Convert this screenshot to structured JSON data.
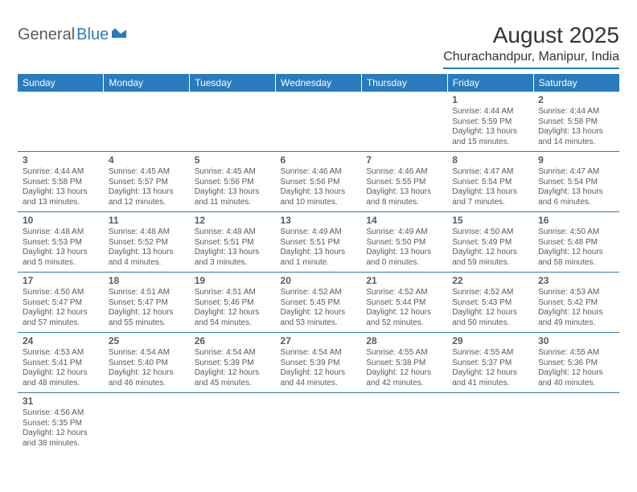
{
  "logo": {
    "part1": "General",
    "part2": "Blue"
  },
  "title": "August 2025",
  "location": "Churachandpur, Manipur, India",
  "colors": {
    "header_bg": "#2a7bbd",
    "header_fg": "#ffffff",
    "rule": "#2a7bbd",
    "text": "#5a5a5a"
  },
  "dayHeaders": [
    "Sunday",
    "Monday",
    "Tuesday",
    "Wednesday",
    "Thursday",
    "Friday",
    "Saturday"
  ],
  "weeks": [
    [
      null,
      null,
      null,
      null,
      null,
      {
        "n": "1",
        "sr": "Sunrise: 4:44 AM",
        "ss": "Sunset: 5:59 PM",
        "dl": "Daylight: 13 hours and 15 minutes."
      },
      {
        "n": "2",
        "sr": "Sunrise: 4:44 AM",
        "ss": "Sunset: 5:58 PM",
        "dl": "Daylight: 13 hours and 14 minutes."
      }
    ],
    [
      {
        "n": "3",
        "sr": "Sunrise: 4:44 AM",
        "ss": "Sunset: 5:58 PM",
        "dl": "Daylight: 13 hours and 13 minutes."
      },
      {
        "n": "4",
        "sr": "Sunrise: 4:45 AM",
        "ss": "Sunset: 5:57 PM",
        "dl": "Daylight: 13 hours and 12 minutes."
      },
      {
        "n": "5",
        "sr": "Sunrise: 4:45 AM",
        "ss": "Sunset: 5:56 PM",
        "dl": "Daylight: 13 hours and 11 minutes."
      },
      {
        "n": "6",
        "sr": "Sunrise: 4:46 AM",
        "ss": "Sunset: 5:56 PM",
        "dl": "Daylight: 13 hours and 10 minutes."
      },
      {
        "n": "7",
        "sr": "Sunrise: 4:46 AM",
        "ss": "Sunset: 5:55 PM",
        "dl": "Daylight: 13 hours and 8 minutes."
      },
      {
        "n": "8",
        "sr": "Sunrise: 4:47 AM",
        "ss": "Sunset: 5:54 PM",
        "dl": "Daylight: 13 hours and 7 minutes."
      },
      {
        "n": "9",
        "sr": "Sunrise: 4:47 AM",
        "ss": "Sunset: 5:54 PM",
        "dl": "Daylight: 13 hours and 6 minutes."
      }
    ],
    [
      {
        "n": "10",
        "sr": "Sunrise: 4:48 AM",
        "ss": "Sunset: 5:53 PM",
        "dl": "Daylight: 13 hours and 5 minutes."
      },
      {
        "n": "11",
        "sr": "Sunrise: 4:48 AM",
        "ss": "Sunset: 5:52 PM",
        "dl": "Daylight: 13 hours and 4 minutes."
      },
      {
        "n": "12",
        "sr": "Sunrise: 4:48 AM",
        "ss": "Sunset: 5:51 PM",
        "dl": "Daylight: 13 hours and 3 minutes."
      },
      {
        "n": "13",
        "sr": "Sunrise: 4:49 AM",
        "ss": "Sunset: 5:51 PM",
        "dl": "Daylight: 13 hours and 1 minute."
      },
      {
        "n": "14",
        "sr": "Sunrise: 4:49 AM",
        "ss": "Sunset: 5:50 PM",
        "dl": "Daylight: 13 hours and 0 minutes."
      },
      {
        "n": "15",
        "sr": "Sunrise: 4:50 AM",
        "ss": "Sunset: 5:49 PM",
        "dl": "Daylight: 12 hours and 59 minutes."
      },
      {
        "n": "16",
        "sr": "Sunrise: 4:50 AM",
        "ss": "Sunset: 5:48 PM",
        "dl": "Daylight: 12 hours and 58 minutes."
      }
    ],
    [
      {
        "n": "17",
        "sr": "Sunrise: 4:50 AM",
        "ss": "Sunset: 5:47 PM",
        "dl": "Daylight: 12 hours and 57 minutes."
      },
      {
        "n": "18",
        "sr": "Sunrise: 4:51 AM",
        "ss": "Sunset: 5:47 PM",
        "dl": "Daylight: 12 hours and 55 minutes."
      },
      {
        "n": "19",
        "sr": "Sunrise: 4:51 AM",
        "ss": "Sunset: 5:46 PM",
        "dl": "Daylight: 12 hours and 54 minutes."
      },
      {
        "n": "20",
        "sr": "Sunrise: 4:52 AM",
        "ss": "Sunset: 5:45 PM",
        "dl": "Daylight: 12 hours and 53 minutes."
      },
      {
        "n": "21",
        "sr": "Sunrise: 4:52 AM",
        "ss": "Sunset: 5:44 PM",
        "dl": "Daylight: 12 hours and 52 minutes."
      },
      {
        "n": "22",
        "sr": "Sunrise: 4:52 AM",
        "ss": "Sunset: 5:43 PM",
        "dl": "Daylight: 12 hours and 50 minutes."
      },
      {
        "n": "23",
        "sr": "Sunrise: 4:53 AM",
        "ss": "Sunset: 5:42 PM",
        "dl": "Daylight: 12 hours and 49 minutes."
      }
    ],
    [
      {
        "n": "24",
        "sr": "Sunrise: 4:53 AM",
        "ss": "Sunset: 5:41 PM",
        "dl": "Daylight: 12 hours and 48 minutes."
      },
      {
        "n": "25",
        "sr": "Sunrise: 4:54 AM",
        "ss": "Sunset: 5:40 PM",
        "dl": "Daylight: 12 hours and 46 minutes."
      },
      {
        "n": "26",
        "sr": "Sunrise: 4:54 AM",
        "ss": "Sunset: 5:39 PM",
        "dl": "Daylight: 12 hours and 45 minutes."
      },
      {
        "n": "27",
        "sr": "Sunrise: 4:54 AM",
        "ss": "Sunset: 5:39 PM",
        "dl": "Daylight: 12 hours and 44 minutes."
      },
      {
        "n": "28",
        "sr": "Sunrise: 4:55 AM",
        "ss": "Sunset: 5:38 PM",
        "dl": "Daylight: 12 hours and 42 minutes."
      },
      {
        "n": "29",
        "sr": "Sunrise: 4:55 AM",
        "ss": "Sunset: 5:37 PM",
        "dl": "Daylight: 12 hours and 41 minutes."
      },
      {
        "n": "30",
        "sr": "Sunrise: 4:55 AM",
        "ss": "Sunset: 5:36 PM",
        "dl": "Daylight: 12 hours and 40 minutes."
      }
    ],
    [
      {
        "n": "31",
        "sr": "Sunrise: 4:56 AM",
        "ss": "Sunset: 5:35 PM",
        "dl": "Daylight: 12 hours and 38 minutes."
      },
      null,
      null,
      null,
      null,
      null,
      null
    ]
  ]
}
